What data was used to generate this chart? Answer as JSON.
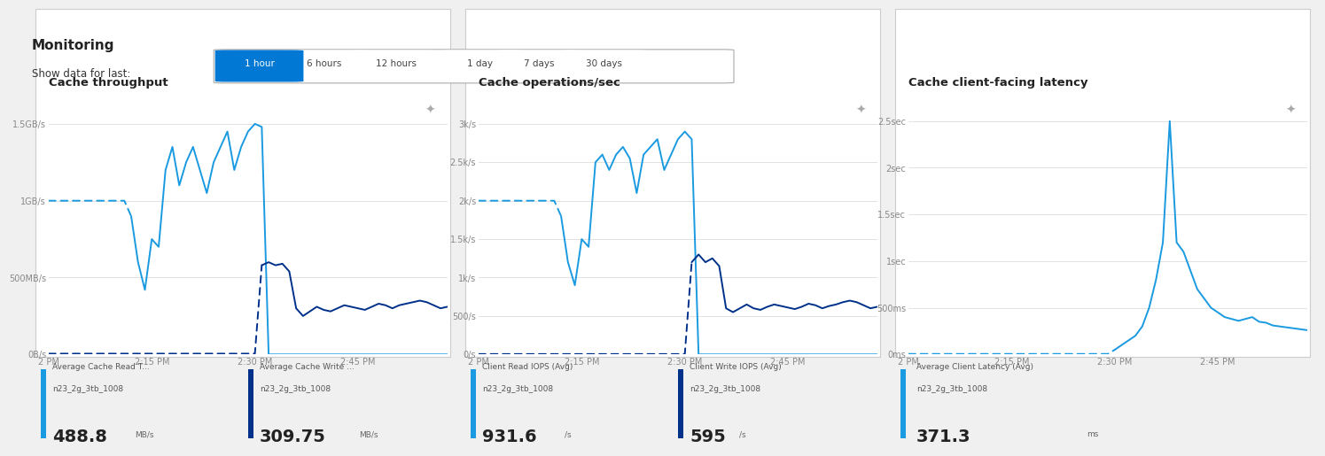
{
  "title": "Monitoring",
  "subtitle": "Show data for last:",
  "time_buttons": [
    "1 hour",
    "6 hours",
    "12 hours",
    "1 day",
    "7 days",
    "30 days"
  ],
  "active_button": "1 hour",
  "page_bg": "#f0f0f0",
  "panel_bg": "#ffffff",
  "charts": [
    {
      "title": "Cache throughput",
      "yticks": [
        "0B/s",
        "500MB/s",
        "1GB/s",
        "1.5GB/s"
      ],
      "yvalues": [
        0,
        500,
        1000,
        1500
      ],
      "ylim": [
        0,
        1700
      ],
      "xticks": [
        "2 PM",
        "2:15 PM",
        "2:30 PM",
        "2:45 PM"
      ],
      "xtick_pos": [
        0,
        15,
        30,
        45
      ],
      "xlim": [
        0,
        58
      ],
      "series": [
        {
          "name": "Average Cache Read T...",
          "sublabel": "n23_2g_3tb_1008",
          "value": "488.8",
          "unit": "MB/s",
          "color": "#1a9ae0",
          "data_x": [
            0,
            1,
            2,
            3,
            4,
            5,
            6,
            7,
            8,
            9,
            10,
            11,
            12,
            13,
            14,
            15,
            16,
            17,
            18,
            19,
            20,
            21,
            22,
            23,
            24,
            25,
            26,
            27,
            28,
            29,
            30,
            31,
            32,
            33,
            34,
            35,
            36,
            37,
            38,
            39,
            40,
            41,
            42,
            43,
            44,
            45,
            46,
            47,
            48,
            49,
            50,
            51,
            52,
            53,
            54,
            55,
            56,
            57,
            58
          ],
          "data_y": [
            1000,
            1000,
            1000,
            1000,
            1000,
            1000,
            1000,
            1000,
            1000,
            1000,
            1000,
            1000,
            900,
            600,
            420,
            750,
            700,
            1200,
            1350,
            1100,
            1250,
            1350,
            1200,
            1050,
            1250,
            1350,
            1450,
            1200,
            1350,
            1450,
            1500,
            1480,
            0,
            0,
            0,
            0,
            0,
            0,
            0,
            0,
            0,
            0,
            0,
            0,
            0,
            0,
            0,
            0,
            0,
            0,
            0,
            0,
            0,
            0,
            0,
            0,
            0,
            0,
            0
          ],
          "dash_end": 12
        },
        {
          "name": "Average Cache Write ...",
          "sublabel": "n23_2g_3tb_1008",
          "value": "309.75",
          "unit": "MB/s",
          "color": "#00318a",
          "data_x": [
            0,
            1,
            2,
            3,
            4,
            5,
            6,
            7,
            8,
            9,
            10,
            11,
            12,
            13,
            14,
            15,
            16,
            17,
            18,
            19,
            20,
            21,
            22,
            23,
            24,
            25,
            26,
            27,
            28,
            29,
            30,
            31,
            32,
            33,
            34,
            35,
            36,
            37,
            38,
            39,
            40,
            41,
            42,
            43,
            44,
            45,
            46,
            47,
            48,
            49,
            50,
            51,
            52,
            53,
            54,
            55,
            56,
            57,
            58
          ],
          "data_y": [
            5,
            5,
            5,
            5,
            5,
            5,
            5,
            5,
            5,
            5,
            5,
            5,
            5,
            5,
            5,
            5,
            5,
            5,
            5,
            5,
            5,
            5,
            5,
            5,
            5,
            5,
            5,
            5,
            5,
            5,
            5,
            580,
            600,
            580,
            590,
            540,
            300,
            250,
            280,
            310,
            290,
            280,
            300,
            320,
            310,
            300,
            290,
            310,
            330,
            320,
            300,
            320,
            330,
            340,
            350,
            340,
            320,
            300,
            310
          ],
          "dash_end": 31
        }
      ],
      "legend": [
        {
          "name": "Average Cache Read T...",
          "sublabel": "n23_2g_3tb_1008",
          "value": "488.8",
          "unit": "MB/s",
          "color": "#1a9ae0"
        },
        {
          "name": "Average Cache Write ...",
          "sublabel": "n23_2g_3tb_1008",
          "value": "309.75",
          "unit": "MB/s",
          "color": "#00318a"
        }
      ]
    },
    {
      "title": "Cache operations/sec",
      "yticks": [
        "0/s",
        "500/s",
        "1k/s",
        "1.5k/s",
        "2k/s",
        "2.5k/s",
        "3k/s"
      ],
      "yvalues": [
        0,
        500,
        1000,
        1500,
        2000,
        2500,
        3000
      ],
      "ylim": [
        0,
        3400
      ],
      "xticks": [
        "2 PM",
        "2:15 PM",
        "2:30 PM",
        "2:45 PM"
      ],
      "xtick_pos": [
        0,
        15,
        30,
        45
      ],
      "xlim": [
        0,
        58
      ],
      "series": [
        {
          "name": "Client Read IOPS (Avg)",
          "sublabel": "n23_2g_3tb_1008",
          "value": "931.6",
          "unit": "/s",
          "color": "#1a9ae0",
          "data_x": [
            0,
            1,
            2,
            3,
            4,
            5,
            6,
            7,
            8,
            9,
            10,
            11,
            12,
            13,
            14,
            15,
            16,
            17,
            18,
            19,
            20,
            21,
            22,
            23,
            24,
            25,
            26,
            27,
            28,
            29,
            30,
            31,
            32,
            33,
            34,
            35,
            36,
            37,
            38,
            39,
            40,
            41,
            42,
            43,
            44,
            45,
            46,
            47,
            48,
            49,
            50,
            51,
            52,
            53,
            54,
            55,
            56,
            57,
            58
          ],
          "data_y": [
            2000,
            2000,
            2000,
            2000,
            2000,
            2000,
            2000,
            2000,
            2000,
            2000,
            2000,
            2000,
            1800,
            1200,
            900,
            1500,
            1400,
            2500,
            2600,
            2400,
            2600,
            2700,
            2550,
            2100,
            2600,
            2700,
            2800,
            2400,
            2600,
            2800,
            2900,
            2800,
            0,
            0,
            0,
            0,
            0,
            0,
            0,
            0,
            0,
            0,
            0,
            0,
            0,
            0,
            0,
            0,
            0,
            0,
            0,
            0,
            0,
            0,
            0,
            0,
            0,
            0,
            0
          ],
          "dash_end": 12
        },
        {
          "name": "Client Write IOPS (Avg)",
          "sublabel": "n23_2g_3tb_1008",
          "value": "595",
          "unit": "/s",
          "color": "#00318a",
          "data_x": [
            0,
            1,
            2,
            3,
            4,
            5,
            6,
            7,
            8,
            9,
            10,
            11,
            12,
            13,
            14,
            15,
            16,
            17,
            18,
            19,
            20,
            21,
            22,
            23,
            24,
            25,
            26,
            27,
            28,
            29,
            30,
            31,
            32,
            33,
            34,
            35,
            36,
            37,
            38,
            39,
            40,
            41,
            42,
            43,
            44,
            45,
            46,
            47,
            48,
            49,
            50,
            51,
            52,
            53,
            54,
            55,
            56,
            57,
            58
          ],
          "data_y": [
            5,
            5,
            5,
            5,
            5,
            5,
            5,
            5,
            5,
            5,
            5,
            5,
            5,
            5,
            5,
            5,
            5,
            5,
            5,
            5,
            5,
            5,
            5,
            5,
            5,
            5,
            5,
            5,
            5,
            5,
            5,
            1200,
            1300,
            1200,
            1250,
            1150,
            600,
            550,
            600,
            650,
            600,
            580,
            620,
            650,
            630,
            610,
            590,
            620,
            660,
            640,
            600,
            630,
            650,
            680,
            700,
            680,
            640,
            600,
            620
          ],
          "dash_end": 31
        }
      ],
      "legend": [
        {
          "name": "Client Read IOPS (Avg)",
          "sublabel": "n23_2g_3tb_1008",
          "value": "931.6",
          "unit": "/s",
          "color": "#1a9ae0"
        },
        {
          "name": "Client Write IOPS (Avg)",
          "sublabel": "n23_2g_3tb_1008",
          "value": "595",
          "unit": "/s",
          "color": "#00318a"
        }
      ]
    },
    {
      "title": "Cache client-facing latency",
      "yticks": [
        "0ms",
        "500ms",
        "1sec",
        "1.5sec",
        "2sec",
        "2.5sec"
      ],
      "yvalues": [
        0,
        500,
        1000,
        1500,
        2000,
        2500
      ],
      "ylim": [
        0,
        2800
      ],
      "xticks": [
        "2 PM",
        "2:15 PM",
        "2:30 PM",
        "2:45 PM"
      ],
      "xtick_pos": [
        0,
        15,
        30,
        45
      ],
      "xlim": [
        0,
        58
      ],
      "series": [
        {
          "name": "Average Client Latency (Avg)",
          "sublabel": "n23_2g_3tb_1008",
          "value": "371.3",
          "unit": "ms",
          "color": "#1a9ae0",
          "data_x": [
            0,
            1,
            2,
            3,
            4,
            5,
            6,
            7,
            8,
            9,
            10,
            11,
            12,
            13,
            14,
            15,
            16,
            17,
            18,
            19,
            20,
            21,
            22,
            23,
            24,
            25,
            26,
            27,
            28,
            29,
            30,
            31,
            32,
            33,
            34,
            35,
            36,
            37,
            38,
            39,
            40,
            41,
            42,
            43,
            44,
            45,
            46,
            47,
            48,
            49,
            50,
            51,
            52,
            53,
            54,
            55,
            56,
            57,
            58
          ],
          "data_y": [
            5,
            5,
            5,
            5,
            5,
            5,
            5,
            5,
            5,
            5,
            5,
            5,
            5,
            5,
            5,
            5,
            5,
            5,
            5,
            5,
            5,
            5,
            5,
            5,
            5,
            5,
            5,
            5,
            5,
            5,
            50,
            100,
            150,
            200,
            300,
            500,
            800,
            1200,
            2500,
            1200,
            1100,
            900,
            700,
            600,
            500,
            450,
            400,
            380,
            360,
            380,
            400,
            350,
            340,
            310,
            300,
            290,
            280,
            270,
            260
          ],
          "dash_end": 30
        }
      ],
      "legend": [
        {
          "name": "Average Client Latency (Avg)",
          "sublabel": "n23_2g_3tb_1008",
          "value": "371.3",
          "unit": "ms",
          "color": "#1a9ae0"
        }
      ]
    }
  ]
}
